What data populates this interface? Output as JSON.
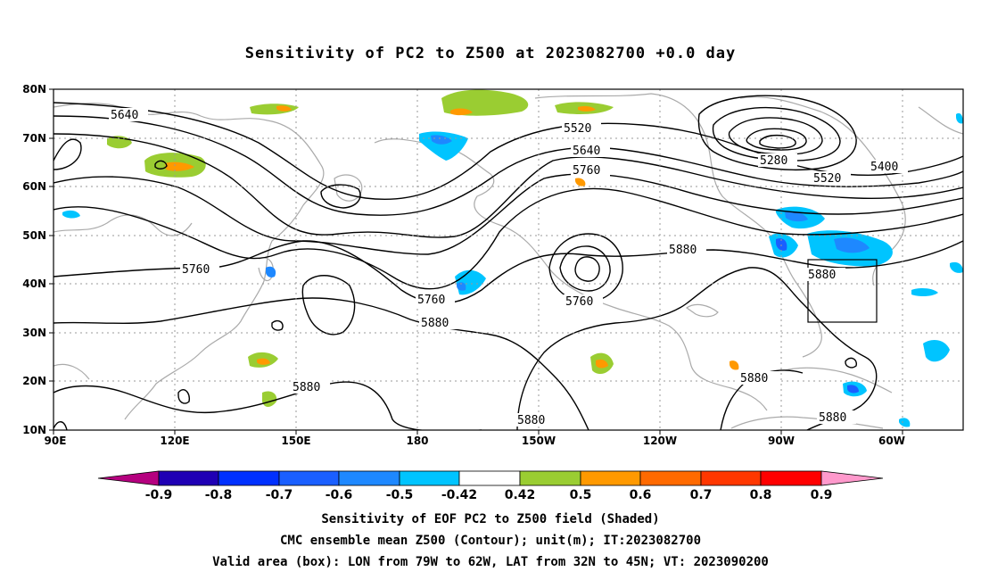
{
  "title": "Sensitivity of PC2 to Z500 at 2023082700 +0.0 day",
  "map": {
    "lon_ticks": [
      "90E",
      "120E",
      "150E",
      "180",
      "150W",
      "120W",
      "90W",
      "60W"
    ],
    "lat_ticks": [
      "80N",
      "70N",
      "60N",
      "50N",
      "40N",
      "30N",
      "20N",
      "10N"
    ],
    "contour_labels": [
      "5640",
      "5520",
      "5640",
      "5760",
      "5280",
      "5400",
      "5520",
      "5760",
      "5880",
      "5760",
      "5760",
      "5880",
      "5880",
      "5880",
      "5880",
      "5880",
      "5880"
    ],
    "colors": {
      "contour": "#000000",
      "coast": "#aaaaaa",
      "grid": "#999999",
      "box": "#000000"
    }
  },
  "colorbar": {
    "labels": [
      "-0.9",
      "-0.8",
      "-0.7",
      "-0.6",
      "-0.5",
      "-0.42",
      "0.42",
      "0.5",
      "0.6",
      "0.7",
      "0.8",
      "0.9"
    ],
    "colors": [
      "#b5007f",
      "#1f00b4",
      "#0030ff",
      "#1a5fff",
      "#1e88ff",
      "#00c4ff",
      "#ffffff",
      "#9acd32",
      "#ff9900",
      "#ff6a00",
      "#ff3700",
      "#ff0000",
      "#ff99cc"
    ]
  },
  "captions": [
    "Sensitivity of EOF PC2 to Z500 field (Shaded)",
    "CMC ensemble mean Z500 (Contour); unit(m); IT:2023082700",
    "Valid area (box): LON from 79W to 62W, LAT from 32N to 45N; VT: 2023090200"
  ]
}
